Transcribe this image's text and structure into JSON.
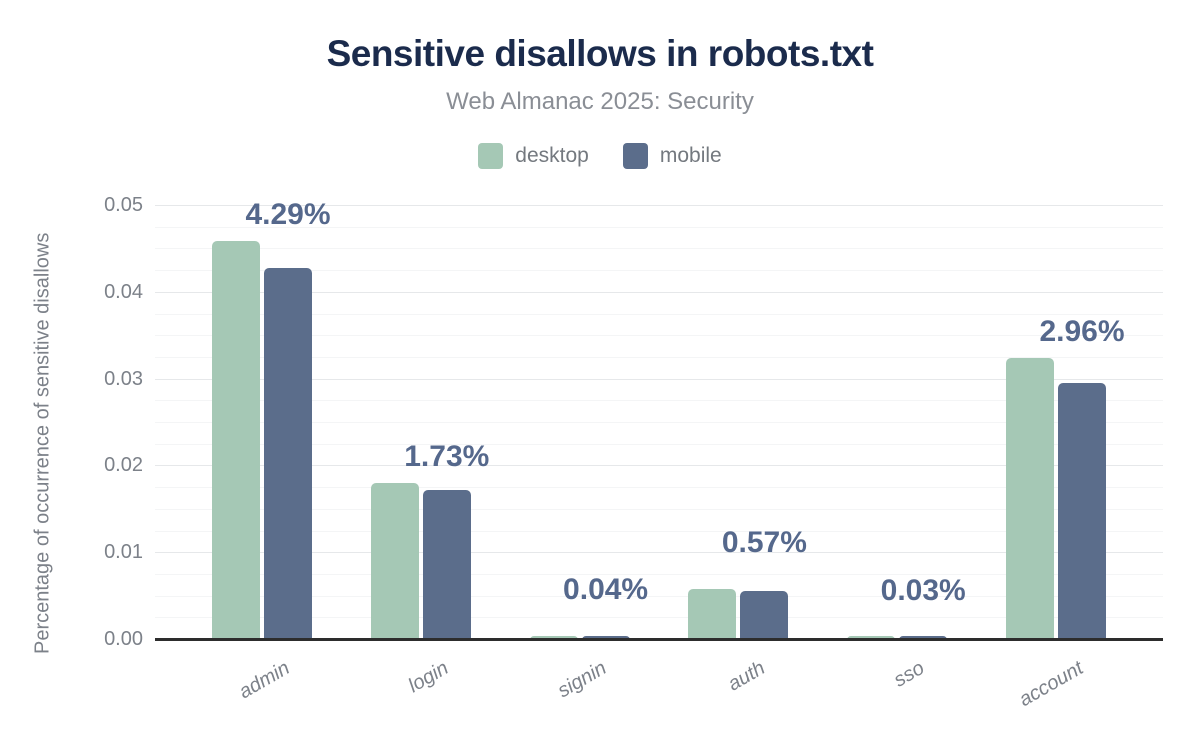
{
  "header": {
    "title": "Sensitive disallows in robots.txt",
    "subtitle": "Web Almanac 2025: Security"
  },
  "colors": {
    "title_text": "#1b2b4c",
    "subtitle_text": "#8a8e95",
    "desktop_bar": "#a5c8b5",
    "mobile_bar": "#5b6d8b",
    "data_label_text": "#55688c",
    "axis_line": "#2d2d2d",
    "tick_text": "#7c8189",
    "grid_major": "#e6e8ea",
    "grid_minor": "#f4f5f6"
  },
  "chart_data": {
    "type": "bar",
    "title": "Sensitive disallows in robots.txt",
    "subtitle": "Web Almanac 2025: Security",
    "categories": [
      "admin",
      "login",
      "signin",
      "auth",
      "sso",
      "account"
    ],
    "series": [
      {
        "name": "desktop",
        "color": "#a5c8b5",
        "values": [
          0.046,
          0.0181,
          0.0005,
          0.0059,
          0.0002,
          0.0325
        ]
      },
      {
        "name": "mobile",
        "color": "#5b6d8b",
        "values": [
          0.0429,
          0.0173,
          0.0004,
          0.0057,
          0.0003,
          0.0296
        ]
      }
    ],
    "data_labels": [
      "4.29%",
      "1.73%",
      "0.04%",
      "0.57%",
      "0.03%",
      "2.96%"
    ],
    "data_label_series": "mobile",
    "xlabel": "",
    "ylabel": "Percentage of occurrence of sensitive disallows",
    "ylim": [
      0,
      0.05
    ],
    "yticks": [
      0,
      0.01,
      0.02,
      0.03,
      0.04,
      0.05
    ],
    "ytick_decimals": 2,
    "minor_tick_step": 0.0025,
    "grid": true,
    "legend_position": "top"
  }
}
